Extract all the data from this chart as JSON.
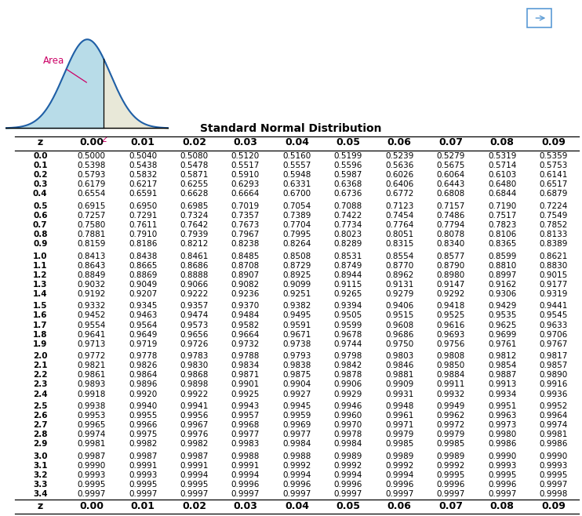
{
  "title": "Standard Normal Distribution",
  "col_headers": [
    "z",
    "0.00",
    "0.01",
    "0.02",
    "0.03",
    "0.04",
    "0.05",
    "0.06",
    "0.07",
    "0.08",
    "0.09"
  ],
  "table_data": [
    [
      "0.0",
      "0.5000",
      "0.5040",
      "0.5080",
      "0.5120",
      "0.5160",
      "0.5199",
      "0.5239",
      "0.5279",
      "0.5319",
      "0.5359"
    ],
    [
      "0.1",
      "0.5398",
      "0.5438",
      "0.5478",
      "0.5517",
      "0.5557",
      "0.5596",
      "0.5636",
      "0.5675",
      "0.5714",
      "0.5753"
    ],
    [
      "0.2",
      "0.5793",
      "0.5832",
      "0.5871",
      "0.5910",
      "0.5948",
      "0.5987",
      "0.6026",
      "0.6064",
      "0.6103",
      "0.6141"
    ],
    [
      "0.3",
      "0.6179",
      "0.6217",
      "0.6255",
      "0.6293",
      "0.6331",
      "0.6368",
      "0.6406",
      "0.6443",
      "0.6480",
      "0.6517"
    ],
    [
      "0.4",
      "0.6554",
      "0.6591",
      "0.6628",
      "0.6664",
      "0.6700",
      "0.6736",
      "0.6772",
      "0.6808",
      "0.6844",
      "0.6879"
    ],
    [
      "0.5",
      "0.6915",
      "0.6950",
      "0.6985",
      "0.7019",
      "0.7054",
      "0.7088",
      "0.7123",
      "0.7157",
      "0.7190",
      "0.7224"
    ],
    [
      "0.6",
      "0.7257",
      "0.7291",
      "0.7324",
      "0.7357",
      "0.7389",
      "0.7422",
      "0.7454",
      "0.7486",
      "0.7517",
      "0.7549"
    ],
    [
      "0.7",
      "0.7580",
      "0.7611",
      "0.7642",
      "0.7673",
      "0.7704",
      "0.7734",
      "0.7764",
      "0.7794",
      "0.7823",
      "0.7852"
    ],
    [
      "0.8",
      "0.7881",
      "0.7910",
      "0.7939",
      "0.7967",
      "0.7995",
      "0.8023",
      "0.8051",
      "0.8078",
      "0.8106",
      "0.8133"
    ],
    [
      "0.9",
      "0.8159",
      "0.8186",
      "0.8212",
      "0.8238",
      "0.8264",
      "0.8289",
      "0.8315",
      "0.8340",
      "0.8365",
      "0.8389"
    ],
    [
      "1.0",
      "0.8413",
      "0.8438",
      "0.8461",
      "0.8485",
      "0.8508",
      "0.8531",
      "0.8554",
      "0.8577",
      "0.8599",
      "0.8621"
    ],
    [
      "1.1",
      "0.8643",
      "0.8665",
      "0.8686",
      "0.8708",
      "0.8729",
      "0.8749",
      "0.8770",
      "0.8790",
      "0.8810",
      "0.8830"
    ],
    [
      "1.2",
      "0.8849",
      "0.8869",
      "0.8888",
      "0.8907",
      "0.8925",
      "0.8944",
      "0.8962",
      "0.8980",
      "0.8997",
      "0.9015"
    ],
    [
      "1.3",
      "0.9032",
      "0.9049",
      "0.9066",
      "0.9082",
      "0.9099",
      "0.9115",
      "0.9131",
      "0.9147",
      "0.9162",
      "0.9177"
    ],
    [
      "1.4",
      "0.9192",
      "0.9207",
      "0.9222",
      "0.9236",
      "0.9251",
      "0.9265",
      "0.9279",
      "0.9292",
      "0.9306",
      "0.9319"
    ],
    [
      "1.5",
      "0.9332",
      "0.9345",
      "0.9357",
      "0.9370",
      "0.9382",
      "0.9394",
      "0.9406",
      "0.9418",
      "0.9429",
      "0.9441"
    ],
    [
      "1.6",
      "0.9452",
      "0.9463",
      "0.9474",
      "0.9484",
      "0.9495",
      "0.9505",
      "0.9515",
      "0.9525",
      "0.9535",
      "0.9545"
    ],
    [
      "1.7",
      "0.9554",
      "0.9564",
      "0.9573",
      "0.9582",
      "0.9591",
      "0.9599",
      "0.9608",
      "0.9616",
      "0.9625",
      "0.9633"
    ],
    [
      "1.8",
      "0.9641",
      "0.9649",
      "0.9656",
      "0.9664",
      "0.9671",
      "0.9678",
      "0.9686",
      "0.9693",
      "0.9699",
      "0.9706"
    ],
    [
      "1.9",
      "0.9713",
      "0.9719",
      "0.9726",
      "0.9732",
      "0.9738",
      "0.9744",
      "0.9750",
      "0.9756",
      "0.9761",
      "0.9767"
    ],
    [
      "2.0",
      "0.9772",
      "0.9778",
      "0.9783",
      "0.9788",
      "0.9793",
      "0.9798",
      "0.9803",
      "0.9808",
      "0.9812",
      "0.9817"
    ],
    [
      "2.1",
      "0.9821",
      "0.9826",
      "0.9830",
      "0.9834",
      "0.9838",
      "0.9842",
      "0.9846",
      "0.9850",
      "0.9854",
      "0.9857"
    ],
    [
      "2.2",
      "0.9861",
      "0.9864",
      "0.9868",
      "0.9871",
      "0.9875",
      "0.9878",
      "0.9881",
      "0.9884",
      "0.9887",
      "0.9890"
    ],
    [
      "2.3",
      "0.9893",
      "0.9896",
      "0.9898",
      "0.9901",
      "0.9904",
      "0.9906",
      "0.9909",
      "0.9911",
      "0.9913",
      "0.9916"
    ],
    [
      "2.4",
      "0.9918",
      "0.9920",
      "0.9922",
      "0.9925",
      "0.9927",
      "0.9929",
      "0.9931",
      "0.9932",
      "0.9934",
      "0.9936"
    ],
    [
      "2.5",
      "0.9938",
      "0.9940",
      "0.9941",
      "0.9943",
      "0.9945",
      "0.9946",
      "0.9948",
      "0.9949",
      "0.9951",
      "0.9952"
    ],
    [
      "2.6",
      "0.9953",
      "0.9955",
      "0.9956",
      "0.9957",
      "0.9959",
      "0.9960",
      "0.9961",
      "0.9962",
      "0.9963",
      "0.9964"
    ],
    [
      "2.7",
      "0.9965",
      "0.9966",
      "0.9967",
      "0.9968",
      "0.9969",
      "0.9970",
      "0.9971",
      "0.9972",
      "0.9973",
      "0.9974"
    ],
    [
      "2.8",
      "0.9974",
      "0.9975",
      "0.9976",
      "0.9977",
      "0.9977",
      "0.9978",
      "0.9979",
      "0.9979",
      "0.9980",
      "0.9981"
    ],
    [
      "2.9",
      "0.9981",
      "0.9982",
      "0.9982",
      "0.9983",
      "0.9984",
      "0.9984",
      "0.9985",
      "0.9985",
      "0.9986",
      "0.9986"
    ],
    [
      "3.0",
      "0.9987",
      "0.9987",
      "0.9987",
      "0.9988",
      "0.9988",
      "0.9989",
      "0.9989",
      "0.9989",
      "0.9990",
      "0.9990"
    ],
    [
      "3.1",
      "0.9990",
      "0.9991",
      "0.9991",
      "0.9991",
      "0.9992",
      "0.9992",
      "0.9992",
      "0.9992",
      "0.9993",
      "0.9993"
    ],
    [
      "3.2",
      "0.9993",
      "0.9993",
      "0.9994",
      "0.9994",
      "0.9994",
      "0.9994",
      "0.9994",
      "0.9995",
      "0.9995",
      "0.9995"
    ],
    [
      "3.3",
      "0.9995",
      "0.9995",
      "0.9995",
      "0.9996",
      "0.9996",
      "0.9996",
      "0.9996",
      "0.9996",
      "0.9996",
      "0.9997"
    ],
    [
      "3.4",
      "0.9997",
      "0.9997",
      "0.9997",
      "0.9997",
      "0.9997",
      "0.9997",
      "0.9997",
      "0.9997",
      "0.9997",
      "0.9998"
    ]
  ],
  "bg_color": "#ffffff",
  "header_color": "#000000",
  "text_color": "#000000",
  "line_color": "#000000",
  "area_label": "Area",
  "area_label_color": "#cc0066",
  "curve_color": "#1f5fa6",
  "fill_color_left": "#b8dce8",
  "fill_color_right": "#e8e8d8",
  "icon_color": "#5b9bd5"
}
